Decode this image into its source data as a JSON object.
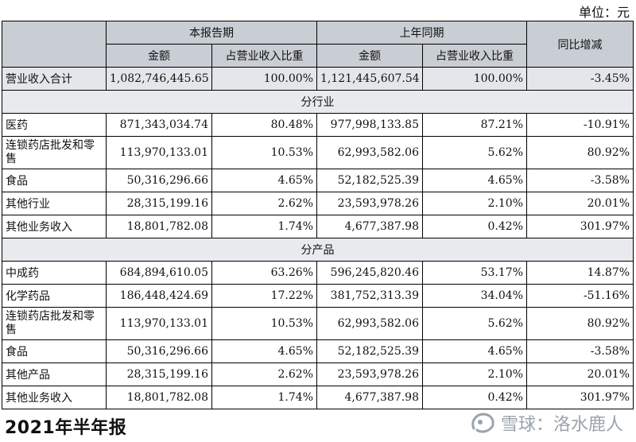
{
  "unit_label": "单位：元",
  "header": {
    "current": "本报告期",
    "prior": "上年同期",
    "yoy": "同比增减",
    "amount": "金额",
    "share": "占营业收入比重"
  },
  "total": {
    "label": "营业收入合计",
    "cur_amount": "1,082,746,445.65",
    "cur_share": "100.00%",
    "prior_amount": "1,121,445,607.54",
    "prior_share": "100.00%",
    "yoy": "-3.45%"
  },
  "sections": [
    {
      "title": "分行业",
      "rows": [
        {
          "label": "医药",
          "cur_amount": "871,343,034.74",
          "cur_share": "80.48%",
          "prior_amount": "977,998,133.85",
          "prior_share": "87.21%",
          "yoy": "-10.91%"
        },
        {
          "label": "连锁药店批发和零售",
          "cur_amount": "113,970,133.01",
          "cur_share": "10.53%",
          "prior_amount": "62,993,582.06",
          "prior_share": "5.62%",
          "yoy": "80.92%"
        },
        {
          "label": "食品",
          "cur_amount": "50,316,296.66",
          "cur_share": "4.65%",
          "prior_amount": "52,182,525.39",
          "prior_share": "4.65%",
          "yoy": "-3.58%"
        },
        {
          "label": "其他行业",
          "cur_amount": "28,315,199.16",
          "cur_share": "2.62%",
          "prior_amount": "23,593,978.26",
          "prior_share": "2.10%",
          "yoy": "20.01%"
        },
        {
          "label": "其他业务收入",
          "cur_amount": "18,801,782.08",
          "cur_share": "1.74%",
          "prior_amount": "4,677,387.98",
          "prior_share": "0.42%",
          "yoy": "301.97%"
        }
      ]
    },
    {
      "title": "分产品",
      "rows": [
        {
          "label": "中成药",
          "cur_amount": "684,894,610.05",
          "cur_share": "63.26%",
          "prior_amount": "596,245,820.46",
          "prior_share": "53.17%",
          "yoy": "14.87%"
        },
        {
          "label": "化学药品",
          "cur_amount": "186,448,424.69",
          "cur_share": "17.22%",
          "prior_amount": "381,752,313.39",
          "prior_share": "34.04%",
          "yoy": "-51.16%"
        },
        {
          "label": "连锁药店批发和零售",
          "cur_amount": "113,970,133.01",
          "cur_share": "10.53%",
          "prior_amount": "62,993,582.06",
          "prior_share": "5.62%",
          "yoy": "80.92%"
        },
        {
          "label": "食品",
          "cur_amount": "50,316,296.66",
          "cur_share": "4.65%",
          "prior_amount": "52,182,525.39",
          "prior_share": "4.65%",
          "yoy": "-3.58%"
        },
        {
          "label": "其他产品",
          "cur_amount": "28,315,199.16",
          "cur_share": "2.62%",
          "prior_amount": "23,593,978.26",
          "prior_share": "2.10%",
          "yoy": "20.01%"
        },
        {
          "label": "其他业务收入",
          "cur_amount": "18,801,782.08",
          "cur_share": "1.74%",
          "prior_amount": "4,677,387.98",
          "prior_share": "0.42%",
          "yoy": "301.97%"
        }
      ]
    }
  ],
  "footer_title": "2021年半年报",
  "watermark": {
    "icon": "snowball-logo-icon",
    "text": "雪球：洛水鹿人"
  },
  "colors": {
    "header_bg": "#c9cdd4",
    "section_bg": "#e9eaed",
    "watermark": "#9aa3ad"
  }
}
